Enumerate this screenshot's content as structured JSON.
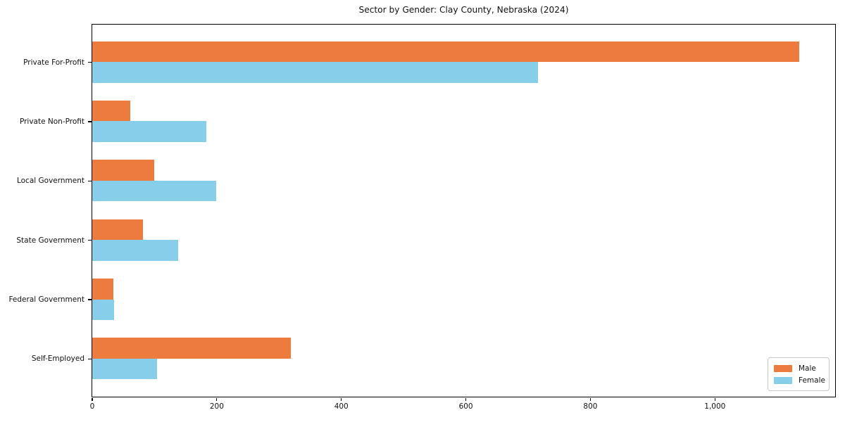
{
  "chart_data": {
    "type": "bar",
    "orientation": "horizontal",
    "title": "Sector by Gender: Clay County, Nebraska (2024)",
    "categories": [
      "Private For-Profit",
      "Private Non-Profit",
      "Local Government",
      "State Government",
      "Federal Government",
      "Self-Employed"
    ],
    "series": [
      {
        "name": "Male",
        "color": "#EC7B3D",
        "values": [
          1136,
          62,
          100,
          82,
          34,
          320
        ]
      },
      {
        "name": "Female",
        "color": "#87CEEB",
        "values": [
          716,
          184,
          200,
          138,
          36,
          105
        ]
      }
    ],
    "xlim": [
      0,
      1193
    ],
    "xticks": [
      0,
      200,
      400,
      600,
      800,
      1000
    ],
    "xtick_labels": [
      "0",
      "200",
      "400",
      "600",
      "800",
      "1,000"
    ],
    "xlabel": "",
    "ylabel": "",
    "grid": false,
    "background": "#ffffff",
    "axis_color": "#000000",
    "legend": {
      "position": "lower-right",
      "entries": [
        "Male",
        "Female"
      ]
    }
  }
}
